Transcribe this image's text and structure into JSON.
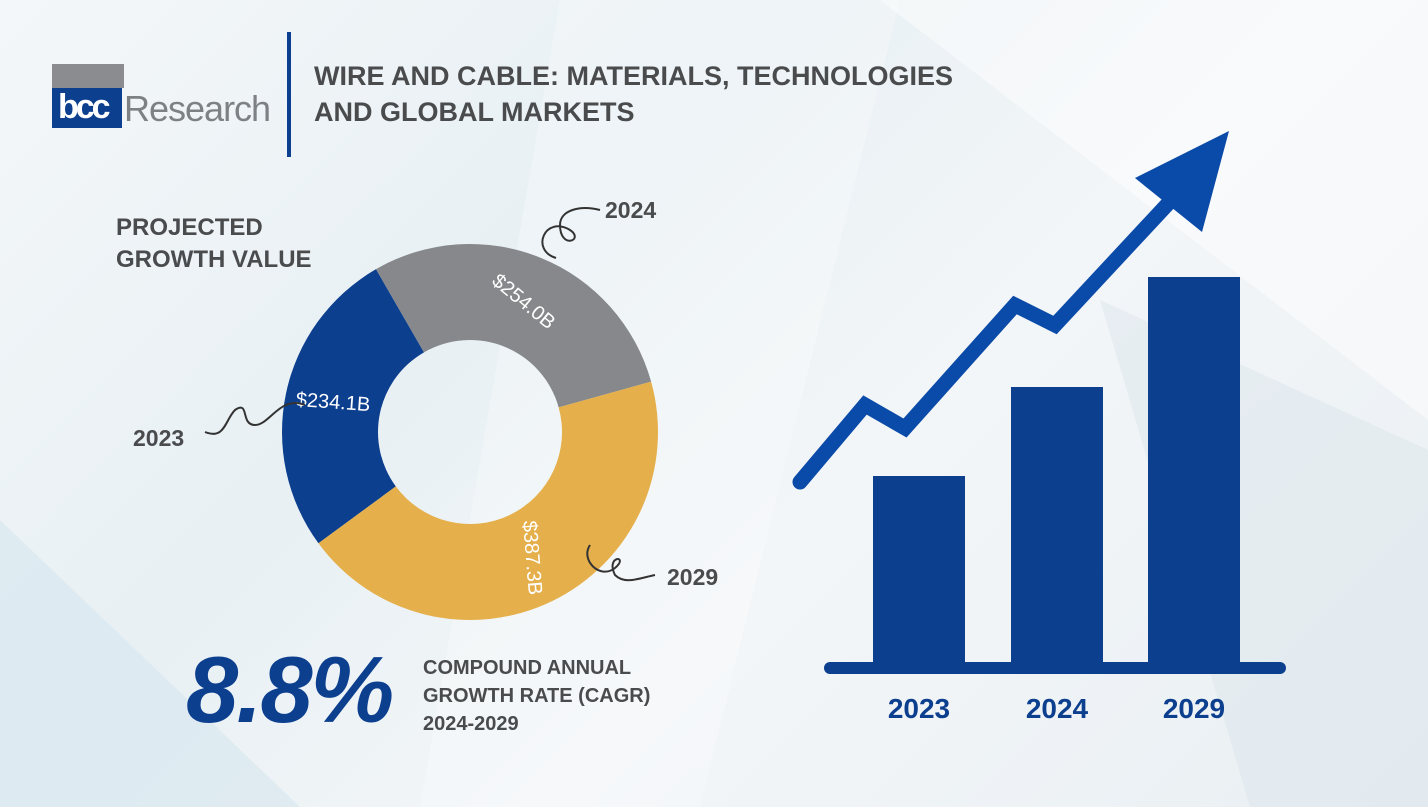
{
  "brand": {
    "logo_text": "bccResearch"
  },
  "title_lines": [
    "WIRE AND CABLE: MATERIALS, TECHNOLOGIES",
    "AND GLOBAL MARKETS"
  ],
  "donut_label_lines": [
    "PROJECTED",
    "GROWTH VALUE"
  ],
  "cagr": {
    "value": "8.8%",
    "label_lines": [
      "COMPOUND ANNUAL",
      "GROWTH RATE (CAGR)",
      "2024-2029"
    ]
  },
  "colors": {
    "primary": "#0d3f8f",
    "grey": "#86888b",
    "gold": "#e5b04b",
    "arrow": "#0a4aa8"
  },
  "chart_data": [
    {
      "type": "pie",
      "variant": "donut",
      "categories": [
        "2023",
        "2024",
        "2029"
      ],
      "values": [
        234.1,
        254.0,
        387.3
      ],
      "labels": [
        "$234.1B",
        "$254.0B",
        "$387.3B"
      ],
      "colors": [
        "#0d3f8f",
        "#86888b",
        "#e5b04b"
      ]
    },
    {
      "type": "bar",
      "categories": [
        "2023",
        "2024",
        "2029"
      ],
      "values": [
        234.1,
        254.0,
        387.3
      ],
      "color": "#0d3f8f",
      "trend_arrow": "up"
    }
  ]
}
